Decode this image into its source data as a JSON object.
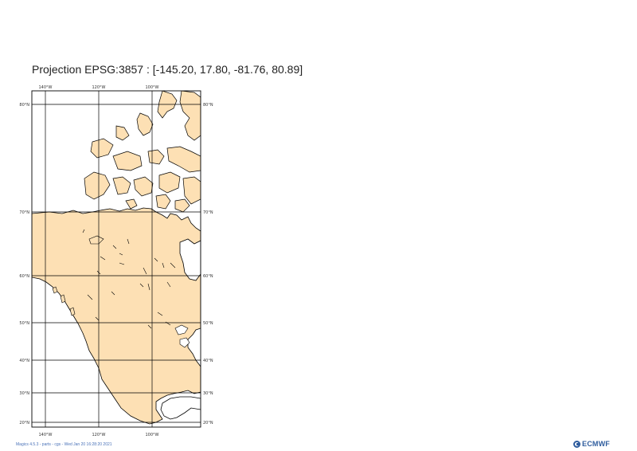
{
  "title": "Projection EPSG:3857 : [-145.20, 17.80, -81.76, 80.89]",
  "map": {
    "longitude_labels": [
      "140°W",
      "120°W",
      "100°W"
    ],
    "latitude_labels": [
      "80°N",
      "70°N",
      "60°N",
      "50°N",
      "40°N",
      "30°N",
      "20°N"
    ],
    "land_color": "#fde0b4",
    "coast_color": "#000000",
    "grid_color": "#000000"
  },
  "footer": {
    "text": "Magics 4.5.3 - parts - cgs - Wed Jan 20 16:28:20 2021"
  },
  "logo": {
    "text": "ECMWF",
    "icon": "ecmwf-logo-icon"
  }
}
